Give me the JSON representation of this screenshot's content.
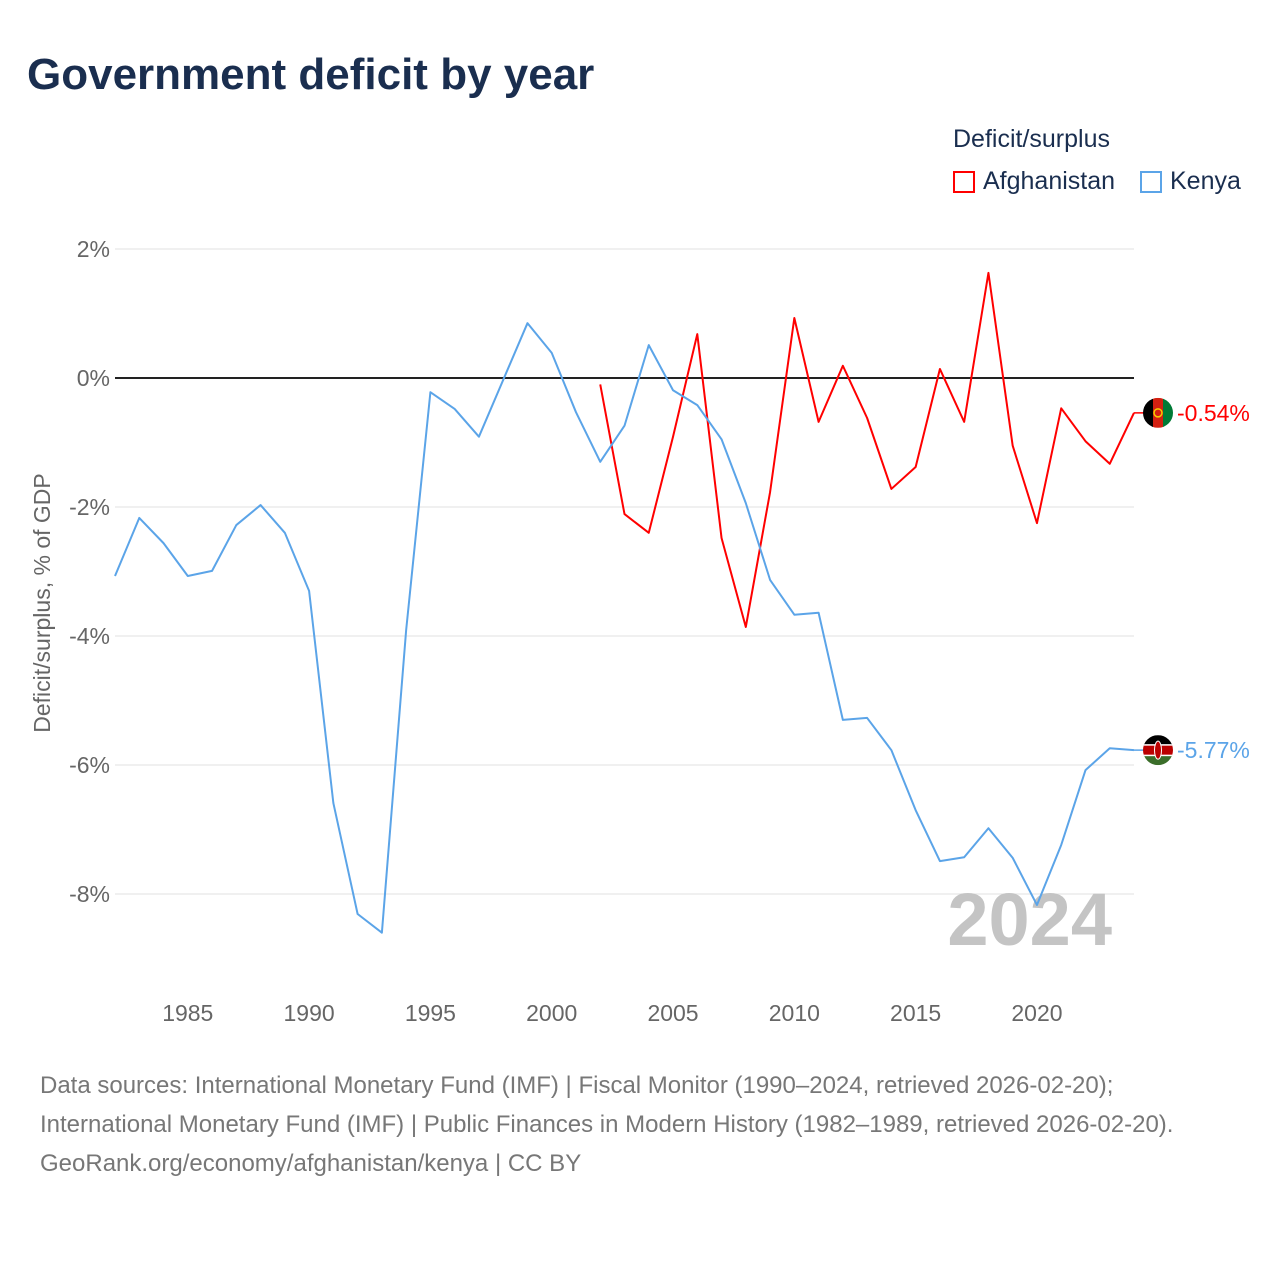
{
  "chart_data": {
    "type": "line",
    "title": "Government deficit by year",
    "ylabel": "Deficit/surplus, % of GDP",
    "xlabel": "",
    "legend_title": "Deficit/surplus",
    "legend_placement": "top-right",
    "ylim": [
      -9.2,
      2.5
    ],
    "xlim": [
      1982,
      2024
    ],
    "y_ticks": [
      2,
      0,
      -2,
      -4,
      -6,
      -8
    ],
    "y_tick_labels": [
      "2%",
      "0%",
      "-2%",
      "-4%",
      "-6%",
      "-8%"
    ],
    "x_ticks": [
      1985,
      1990,
      1995,
      2000,
      2005,
      2010,
      2015,
      2020
    ],
    "x_tick_labels": [
      "1985",
      "1990",
      "1995",
      "2000",
      "2005",
      "2010",
      "2015",
      "2020"
    ],
    "grid": true,
    "year_watermark": "2024",
    "series": [
      {
        "name": "Afghanistan",
        "color": "#ff0000",
        "end_label": "-0.54%",
        "start_year": 2002,
        "values": [
          -0.1,
          -2.11,
          -2.4,
          -0.91,
          0.68,
          -2.48,
          -3.86,
          -1.77,
          0.93,
          -0.68,
          0.19,
          -0.62,
          -1.72,
          -1.38,
          0.14,
          -0.68,
          1.63,
          -1.05,
          -2.25,
          -0.47,
          -0.98,
          -1.33,
          -0.54
        ]
      },
      {
        "name": "Kenya",
        "color": "#5ba4e8",
        "end_label": "-5.77%",
        "start_year": 1982,
        "values": [
          -3.07,
          -2.17,
          -2.56,
          -3.07,
          -2.99,
          -2.28,
          -1.97,
          -2.4,
          -3.3,
          -6.59,
          -8.31,
          -8.6,
          -3.91,
          -0.22,
          -0.48,
          -0.91,
          -0.03,
          0.85,
          0.39,
          -0.53,
          -1.3,
          -0.74,
          0.51,
          -0.19,
          -0.42,
          -0.95,
          -1.94,
          -3.13,
          -3.67,
          -3.64,
          -5.3,
          -5.27,
          -5.77,
          -6.7,
          -7.49,
          -7.43,
          -6.98,
          -7.44,
          -8.17,
          -7.24,
          -6.08,
          -5.74,
          -5.77
        ]
      }
    ]
  },
  "footer": {
    "sources": "Data sources: International Monetary Fund (IMF) | Fiscal Monitor (1990–2024, retrieved 2026-02-20); International Monetary Fund (IMF) | Public Finances in Modern History (1982–1989, retrieved 2026-02-20).",
    "credit": "GeoRank.org/economy/afghanistan/kenya | CC BY"
  }
}
